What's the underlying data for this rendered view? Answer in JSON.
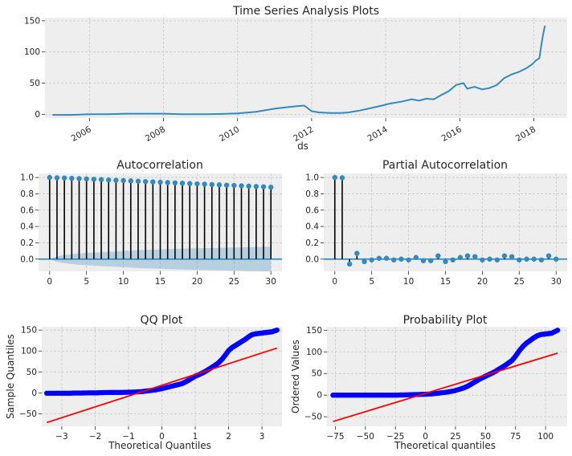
{
  "chart_data": [
    {
      "id": "ts",
      "type": "line",
      "title": "Time Series Analysis Plots",
      "xlabel": "ds",
      "ylabel": "",
      "xlim": [
        2004.8,
        2018.9
      ],
      "ylim": [
        -6,
        155
      ],
      "yticks": [
        0,
        50,
        100,
        150
      ],
      "xticks": [
        2006,
        2008,
        2010,
        2012,
        2014,
        2016,
        2018
      ],
      "xtick_labels": [
        "2006",
        "2008",
        "2010",
        "2012",
        "2014",
        "2016",
        "2018"
      ],
      "line_color": "#348ABD",
      "series": [
        {
          "x": [
            2005.0,
            2005.5,
            2006.0,
            2006.5,
            2007.0,
            2007.5,
            2008.0,
            2008.5,
            2009.0,
            2009.5,
            2010.0,
            2010.5,
            2010.8,
            2011.0,
            2011.3,
            2011.6,
            2011.8,
            2012.0,
            2012.2,
            2012.5,
            2012.8,
            2013.0,
            2013.3,
            2013.6,
            2013.9,
            2014.1,
            2014.4,
            2014.7,
            2014.9,
            2015.1,
            2015.3,
            2015.5,
            2015.7,
            2015.9,
            2016.1,
            2016.2,
            2016.4,
            2016.6,
            2016.8,
            2017.0,
            2017.2,
            2017.4,
            2017.6,
            2017.8,
            2017.95,
            2018.05,
            2018.15,
            2018.2,
            2018.25,
            2018.3
          ],
          "y": [
            -1,
            -1,
            0,
            0,
            1,
            1,
            1,
            0,
            0,
            0.5,
            1.5,
            4,
            7,
            9,
            11,
            13,
            14,
            5,
            3,
            2,
            2,
            3,
            6,
            10,
            14,
            17,
            20,
            24,
            22,
            25,
            24,
            31,
            37,
            47,
            50,
            41,
            44,
            40,
            42,
            47,
            58,
            64,
            68,
            74,
            80,
            86,
            90,
            110,
            128,
            142
          ]
        }
      ]
    },
    {
      "id": "acf",
      "type": "stem",
      "title": "Autocorrelation",
      "xlabel": "",
      "ylabel": "",
      "xlim": [
        -1.5,
        31.5
      ],
      "ylim": [
        -0.15,
        1.05
      ],
      "xticks": [
        0,
        5,
        10,
        15,
        20,
        25,
        30
      ],
      "yticks": [
        0.0,
        0.2,
        0.4,
        0.6,
        0.8,
        1.0
      ],
      "ytick_labels": [
        "0.0",
        "0.2",
        "0.4",
        "0.6",
        "0.8",
        "1.0"
      ],
      "marker_color": "#348ABD",
      "lags": [
        0,
        1,
        2,
        3,
        4,
        5,
        6,
        7,
        8,
        9,
        10,
        11,
        12,
        13,
        14,
        15,
        16,
        17,
        18,
        19,
        20,
        21,
        22,
        23,
        24,
        25,
        26,
        27,
        28,
        29,
        30
      ],
      "values": [
        1.0,
        0.996,
        0.993,
        0.99,
        0.986,
        0.982,
        0.978,
        0.974,
        0.97,
        0.966,
        0.962,
        0.958,
        0.954,
        0.95,
        0.946,
        0.942,
        0.938,
        0.934,
        0.93,
        0.926,
        0.922,
        0.918,
        0.914,
        0.91,
        0.906,
        0.902,
        0.898,
        0.894,
        0.89,
        0.886,
        0.882
      ],
      "conf_band": [
        0.0,
        0.035,
        0.05,
        0.06,
        0.07,
        0.075,
        0.08,
        0.085,
        0.09,
        0.095,
        0.1,
        0.105,
        0.11,
        0.113,
        0.116,
        0.119,
        0.122,
        0.125,
        0.128,
        0.13,
        0.132,
        0.134,
        0.136,
        0.138,
        0.14,
        0.142,
        0.144,
        0.146,
        0.148,
        0.15,
        0.152
      ]
    },
    {
      "id": "pacf",
      "type": "stem",
      "title": "Partial Autocorrelation",
      "xlabel": "",
      "ylabel": "",
      "xlim": [
        -1.5,
        31.5
      ],
      "ylim": [
        -0.15,
        1.05
      ],
      "xticks": [
        0,
        5,
        10,
        15,
        20,
        25,
        30
      ],
      "yticks": [
        0.0,
        0.2,
        0.4,
        0.6,
        0.8,
        1.0
      ],
      "ytick_labels": [
        "0.0",
        "0.2",
        "0.4",
        "0.6",
        "0.8",
        "1.0"
      ],
      "marker_color": "#348ABD",
      "lags": [
        0,
        1,
        2,
        3,
        4,
        5,
        6,
        7,
        8,
        9,
        10,
        11,
        12,
        13,
        14,
        15,
        16,
        17,
        18,
        19,
        20,
        21,
        22,
        23,
        24,
        25,
        26,
        27,
        28,
        29,
        30
      ],
      "values": [
        1.0,
        0.996,
        -0.06,
        0.07,
        -0.03,
        -0.01,
        0.01,
        0.01,
        -0.01,
        0.0,
        -0.01,
        0.02,
        -0.02,
        -0.02,
        0.04,
        -0.03,
        -0.01,
        0.02,
        0.04,
        0.03,
        -0.01,
        0.0,
        -0.01,
        0.04,
        0.03,
        -0.01,
        0.0,
        0.0,
        -0.01,
        0.04,
        0.0
      ]
    },
    {
      "id": "qq",
      "type": "scatter",
      "title": "QQ Plot",
      "xlabel": "Theoretical Quantiles",
      "ylabel": "Sample Quantiles",
      "xlim": [
        -3.6,
        3.6
      ],
      "ylim": [
        -80,
        158
      ],
      "xticks": [
        -3,
        -2,
        -1,
        0,
        1,
        2,
        3
      ],
      "xtick_labels": [
        "−3",
        "−2",
        "−1",
        "0",
        "1",
        "2",
        "3"
      ],
      "yticks": [
        -50,
        0,
        50,
        100,
        150
      ],
      "ytick_labels": [
        "−50",
        "0",
        "50",
        "100",
        "150"
      ],
      "point_color": "#0000ff",
      "fit_color": "#ff0000",
      "fit_line": {
        "x": [
          -3.45,
          3.45
        ],
        "y": [
          -71,
          107
        ]
      },
      "points": {
        "x": [
          -3.45,
          -3.2,
          -3.0,
          -2.8,
          -2.6,
          -2.4,
          -2.2,
          -2.0,
          -1.8,
          -1.6,
          -1.4,
          -1.2,
          -1.0,
          -0.8,
          -0.6,
          -0.4,
          -0.2,
          0.0,
          0.2,
          0.4,
          0.5,
          0.6,
          0.7,
          0.8,
          0.9,
          1.0,
          1.1,
          1.2,
          1.3,
          1.4,
          1.5,
          1.6,
          1.7,
          1.8,
          1.9,
          2.0,
          2.1,
          2.2,
          2.3,
          2.4,
          2.5,
          2.6,
          2.7,
          2.8,
          2.9,
          3.0,
          3.1,
          3.2,
          3.3,
          3.45
        ],
        "y": [
          -1,
          -1,
          -1,
          -1,
          -0.5,
          -0.5,
          0,
          0,
          0.5,
          1,
          1,
          1,
          1.5,
          2,
          3,
          5,
          7,
          10,
          14,
          18,
          20,
          22,
          26,
          30,
          35,
          40,
          43,
          47,
          51,
          56,
          61,
          66,
          72,
          80,
          90,
          101,
          108,
          113,
          118,
          123,
          128,
          134,
          139,
          141,
          142,
          143,
          144,
          145,
          146,
          150
        ]
      }
    },
    {
      "id": "prob",
      "type": "scatter",
      "title": "Probability Plot",
      "xlabel": "Theoretical quantiles",
      "ylabel": "Ordered Values",
      "xlim": [
        -82,
        118
      ],
      "ylim": [
        -72,
        158
      ],
      "xticks": [
        -75,
        -50,
        -25,
        0,
        25,
        50,
        75,
        100
      ],
      "xtick_labels": [
        "−75",
        "−50",
        "−25",
        "0",
        "25",
        "50",
        "75",
        "100"
      ],
      "yticks": [
        -50,
        0,
        50,
        100,
        150
      ],
      "ytick_labels": [
        "−50",
        "0",
        "50",
        "100",
        "150"
      ],
      "point_color": "#0000ff",
      "fit_color": "#ff0000",
      "fit_line": {
        "x": [
          -77,
          110
        ],
        "y": [
          -61,
          97
        ]
      },
      "points": {
        "x": [
          -77,
          -72,
          -66,
          -60,
          -54,
          -48,
          -42,
          -36,
          -30,
          -24,
          -18,
          -12,
          -6,
          0,
          6,
          12,
          18,
          24,
          30,
          33,
          36,
          39,
          42,
          45,
          48,
          51,
          54,
          57,
          60,
          63,
          66,
          69,
          72,
          75,
          78,
          81,
          84,
          87,
          90,
          93,
          96,
          99,
          102,
          105,
          110
        ],
        "y": [
          0,
          0,
          0,
          0,
          0,
          0,
          0,
          0,
          0,
          0,
          0.5,
          1,
          1.5,
          2,
          3,
          5,
          7,
          10,
          15,
          18,
          22,
          27,
          32,
          37,
          41,
          45,
          49,
          53,
          58,
          63,
          68,
          74,
          80,
          90,
          102,
          112,
          120,
          126,
          132,
          137,
          140,
          141,
          142,
          143,
          150
        ]
      }
    }
  ]
}
